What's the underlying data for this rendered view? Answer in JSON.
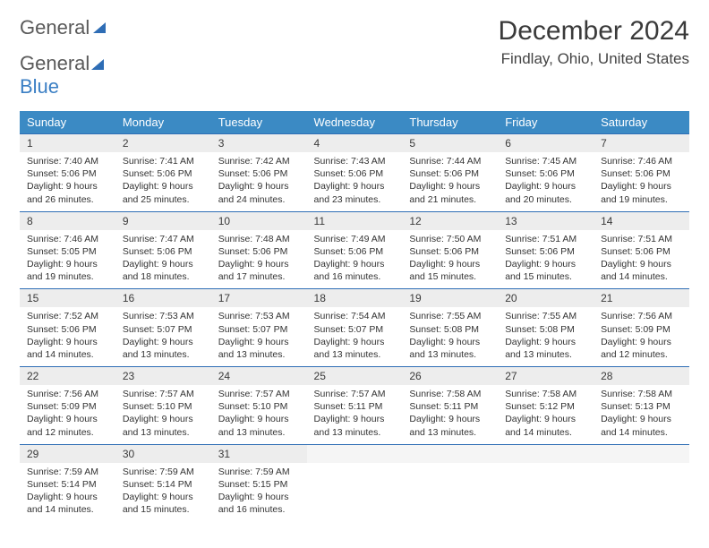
{
  "brand": {
    "part1": "General",
    "part2": "Blue"
  },
  "title": "December 2024",
  "location": "Findlay, Ohio, United States",
  "weekdays": [
    "Sunday",
    "Monday",
    "Tuesday",
    "Wednesday",
    "Thursday",
    "Friday",
    "Saturday"
  ],
  "colors": {
    "header_bg": "#3b8ac4",
    "header_text": "#ffffff",
    "daynum_bg": "#ededed",
    "row_border": "#2e6db5",
    "logo_gray": "#5a5a5a",
    "logo_blue": "#3b7fc4"
  },
  "weeks": [
    [
      {
        "n": "1",
        "sr": "7:40 AM",
        "ss": "5:06 PM",
        "dl": "9 hours and 26 minutes."
      },
      {
        "n": "2",
        "sr": "7:41 AM",
        "ss": "5:06 PM",
        "dl": "9 hours and 25 minutes."
      },
      {
        "n": "3",
        "sr": "7:42 AM",
        "ss": "5:06 PM",
        "dl": "9 hours and 24 minutes."
      },
      {
        "n": "4",
        "sr": "7:43 AM",
        "ss": "5:06 PM",
        "dl": "9 hours and 23 minutes."
      },
      {
        "n": "5",
        "sr": "7:44 AM",
        "ss": "5:06 PM",
        "dl": "9 hours and 21 minutes."
      },
      {
        "n": "6",
        "sr": "7:45 AM",
        "ss": "5:06 PM",
        "dl": "9 hours and 20 minutes."
      },
      {
        "n": "7",
        "sr": "7:46 AM",
        "ss": "5:06 PM",
        "dl": "9 hours and 19 minutes."
      }
    ],
    [
      {
        "n": "8",
        "sr": "7:46 AM",
        "ss": "5:05 PM",
        "dl": "9 hours and 19 minutes."
      },
      {
        "n": "9",
        "sr": "7:47 AM",
        "ss": "5:06 PM",
        "dl": "9 hours and 18 minutes."
      },
      {
        "n": "10",
        "sr": "7:48 AM",
        "ss": "5:06 PM",
        "dl": "9 hours and 17 minutes."
      },
      {
        "n": "11",
        "sr": "7:49 AM",
        "ss": "5:06 PM",
        "dl": "9 hours and 16 minutes."
      },
      {
        "n": "12",
        "sr": "7:50 AM",
        "ss": "5:06 PM",
        "dl": "9 hours and 15 minutes."
      },
      {
        "n": "13",
        "sr": "7:51 AM",
        "ss": "5:06 PM",
        "dl": "9 hours and 15 minutes."
      },
      {
        "n": "14",
        "sr": "7:51 AM",
        "ss": "5:06 PM",
        "dl": "9 hours and 14 minutes."
      }
    ],
    [
      {
        "n": "15",
        "sr": "7:52 AM",
        "ss": "5:06 PM",
        "dl": "9 hours and 14 minutes."
      },
      {
        "n": "16",
        "sr": "7:53 AM",
        "ss": "5:07 PM",
        "dl": "9 hours and 13 minutes."
      },
      {
        "n": "17",
        "sr": "7:53 AM",
        "ss": "5:07 PM",
        "dl": "9 hours and 13 minutes."
      },
      {
        "n": "18",
        "sr": "7:54 AM",
        "ss": "5:07 PM",
        "dl": "9 hours and 13 minutes."
      },
      {
        "n": "19",
        "sr": "7:55 AM",
        "ss": "5:08 PM",
        "dl": "9 hours and 13 minutes."
      },
      {
        "n": "20",
        "sr": "7:55 AM",
        "ss": "5:08 PM",
        "dl": "9 hours and 13 minutes."
      },
      {
        "n": "21",
        "sr": "7:56 AM",
        "ss": "5:09 PM",
        "dl": "9 hours and 12 minutes."
      }
    ],
    [
      {
        "n": "22",
        "sr": "7:56 AM",
        "ss": "5:09 PM",
        "dl": "9 hours and 12 minutes."
      },
      {
        "n": "23",
        "sr": "7:57 AM",
        "ss": "5:10 PM",
        "dl": "9 hours and 13 minutes."
      },
      {
        "n": "24",
        "sr": "7:57 AM",
        "ss": "5:10 PM",
        "dl": "9 hours and 13 minutes."
      },
      {
        "n": "25",
        "sr": "7:57 AM",
        "ss": "5:11 PM",
        "dl": "9 hours and 13 minutes."
      },
      {
        "n": "26",
        "sr": "7:58 AM",
        "ss": "5:11 PM",
        "dl": "9 hours and 13 minutes."
      },
      {
        "n": "27",
        "sr": "7:58 AM",
        "ss": "5:12 PM",
        "dl": "9 hours and 14 minutes."
      },
      {
        "n": "28",
        "sr": "7:58 AM",
        "ss": "5:13 PM",
        "dl": "9 hours and 14 minutes."
      }
    ],
    [
      {
        "n": "29",
        "sr": "7:59 AM",
        "ss": "5:14 PM",
        "dl": "9 hours and 14 minutes."
      },
      {
        "n": "30",
        "sr": "7:59 AM",
        "ss": "5:14 PM",
        "dl": "9 hours and 15 minutes."
      },
      {
        "n": "31",
        "sr": "7:59 AM",
        "ss": "5:15 PM",
        "dl": "9 hours and 16 minutes."
      },
      null,
      null,
      null,
      null
    ]
  ],
  "labels": {
    "sunrise": "Sunrise:",
    "sunset": "Sunset:",
    "daylight": "Daylight:"
  }
}
